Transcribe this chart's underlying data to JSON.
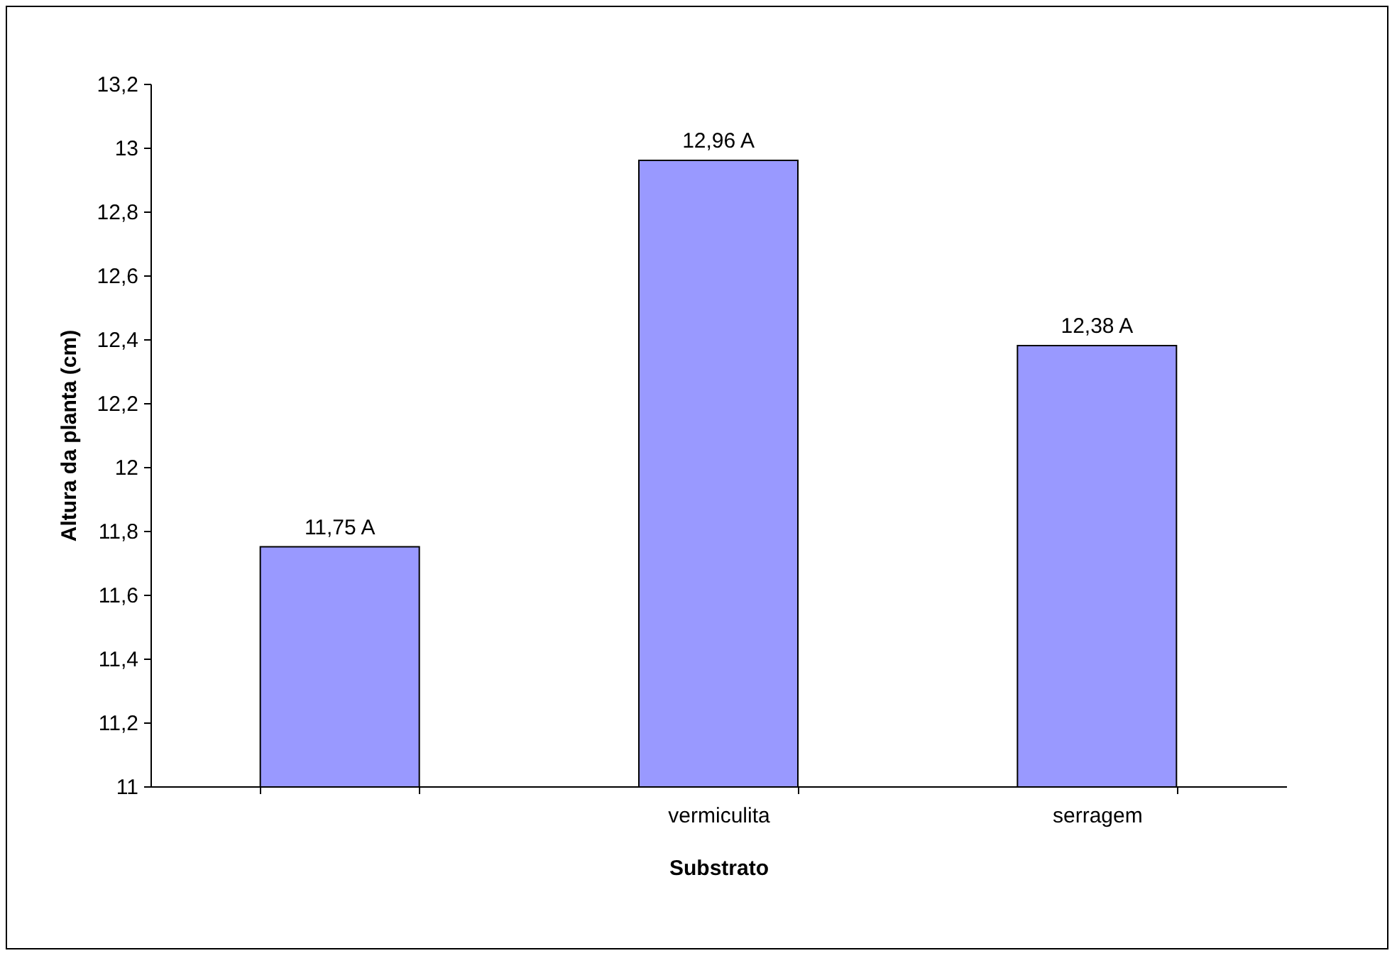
{
  "chart_data": {
    "type": "bar",
    "xlabel": "Substrato",
    "ylabel": "Altura da planta (cm)",
    "categories": [
      null,
      "vermiculita",
      "serragem"
    ],
    "values": [
      11.75,
      12.96,
      12.38
    ],
    "value_labels": [
      "11,75 A",
      "12,96 A",
      "12,38 A"
    ],
    "color": "#9999ff",
    "ylim": [
      11,
      13.2
    ],
    "yticks": [
      11,
      {
        "value": 11.2,
        "label": "11,2"
      },
      {
        "value": 11.4,
        "label": "11,4"
      },
      {
        "value": 11.6,
        "label": "11,6"
      },
      {
        "value": 11.8,
        "label": "11,8"
      },
      12,
      {
        "value": 12.2,
        "label": "12,2"
      },
      {
        "value": 12.4,
        "label": "12,4"
      },
      {
        "value": 12.6,
        "label": "12,6"
      },
      {
        "value": 12.8,
        "label": "12,8"
      },
      13,
      {
        "value": 13.2,
        "label": "13,2"
      }
    ],
    "grid": false
  }
}
